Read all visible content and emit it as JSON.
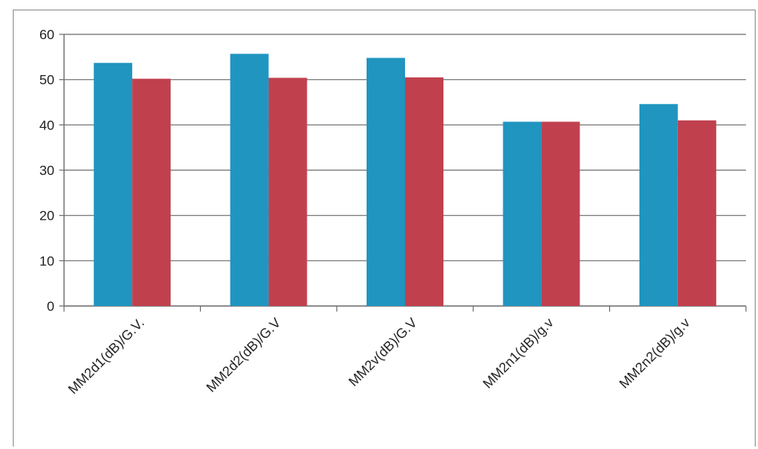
{
  "chart_data": {
    "type": "bar",
    "title": "",
    "xlabel": "",
    "ylabel": "",
    "ylim": [
      0,
      60
    ],
    "yticks": [
      0,
      10,
      20,
      30,
      40,
      50,
      60
    ],
    "grid": true,
    "legend": "none",
    "categories": [
      "MM2d1(dB)/G.V.",
      "MM2d2(dB)/G.V",
      "MM2v(dB)/G.V",
      "MM2n1(dB)/g.v",
      "MM2n2(dB)/g.v"
    ],
    "series": [
      {
        "color": "#1f95c0",
        "values": [
          53.7,
          55.7,
          54.8,
          40.7,
          44.6
        ]
      },
      {
        "color": "#c0404e",
        "values": [
          50.2,
          50.4,
          50.5,
          40.7,
          41.0
        ]
      }
    ]
  }
}
